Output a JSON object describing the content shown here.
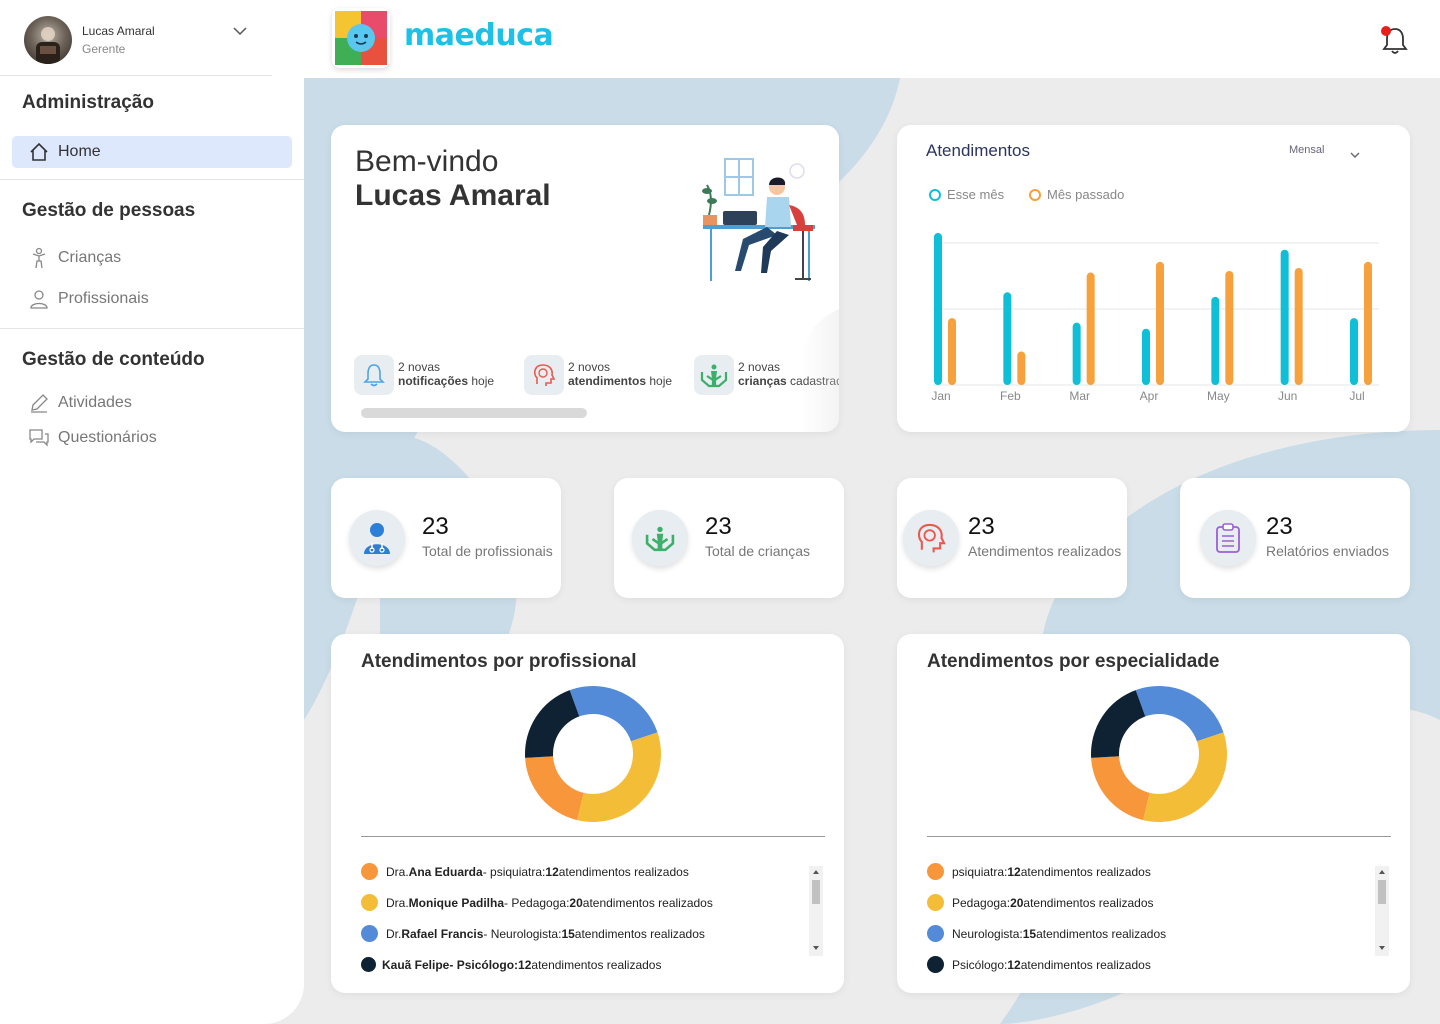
{
  "user": {
    "name": "Lucas Amaral",
    "role": "Gerente"
  },
  "app": {
    "name": "maeduca"
  },
  "sidebar": {
    "sections": [
      {
        "title": "Administração",
        "items": [
          {
            "label": "Home",
            "icon": "home-icon",
            "active": true
          }
        ]
      },
      {
        "title": "Gestão de pessoas",
        "items": [
          {
            "label": "Crianças",
            "icon": "child-icon"
          },
          {
            "label": "Profissionais",
            "icon": "professional-icon"
          }
        ]
      },
      {
        "title": "Gestão de conteúdo",
        "items": [
          {
            "label": "Atividades",
            "icon": "pencil-icon"
          },
          {
            "label": "Questionários",
            "icon": "chat-icon"
          }
        ]
      }
    ]
  },
  "welcome": {
    "greeting": "Bem-vindo",
    "name": "Lucas Amaral",
    "infos": [
      {
        "line1": "2 novas",
        "bold": "notificações",
        "rest": " hoje",
        "icon": "bell-icon"
      },
      {
        "line1": "2 novos",
        "bold": "atendimentos",
        "rest": " hoje",
        "icon": "head-icon"
      },
      {
        "line1": "2 novas",
        "bold": "crianças",
        "rest": " cadastradas",
        "icon": "hands-icon"
      }
    ]
  },
  "attendance_chart": {
    "title": "Atendimentos",
    "period": "Mensal",
    "legend": {
      "current": "Esse mês",
      "previous": "Mês passado"
    }
  },
  "chart_data": [
    {
      "type": "bar",
      "title": "Atendimentos",
      "categories": [
        "Jan",
        "Feb",
        "Mar",
        "Apr",
        "May",
        "Jun",
        "Jul"
      ],
      "series": [
        {
          "name": "Esse mês",
          "color": "#0fbfd8",
          "values": [
            100,
            61,
            41,
            37,
            58,
            89,
            44
          ]
        },
        {
          "name": "Mês passado",
          "color": "#f7a13d",
          "values": [
            44,
            22,
            74,
            81,
            75,
            77,
            81
          ]
        }
      ],
      "ylim": [
        0,
        100
      ],
      "grid": true
    },
    {
      "type": "pie",
      "title": "Atendimentos por profissional",
      "labels": [
        "Dra. Ana Eduarda",
        "Dra. Monique Padilha",
        "Dr. Rafael Francis",
        "Kauã Felipe"
      ],
      "values": [
        12,
        20,
        15,
        12
      ]
    },
    {
      "type": "pie",
      "title": "Atendimentos por especialidade",
      "labels": [
        "psiquiatra",
        "Pedagoga",
        "Neurologista",
        "Psicólogo"
      ],
      "values": [
        12,
        20,
        15,
        12
      ]
    }
  ],
  "stats": [
    {
      "value": "23",
      "label": "Total de profissionais",
      "icon": "doctor-icon"
    },
    {
      "value": "23",
      "label": "Total de crianças",
      "icon": "hands-icon"
    },
    {
      "value": "23",
      "label": "Atendimentos realizados",
      "icon": "head-icon"
    },
    {
      "value": "23",
      "label": "Relatórios enviados",
      "icon": "clipboard-icon"
    }
  ],
  "by_professional": {
    "title": "Atendimentos por profissional",
    "items": [
      {
        "prefix": "Dra. ",
        "name": "Ana Eduarda",
        "role": " - psiquiatra: ",
        "count": "12",
        "suffix": " atendimentos realizados",
        "color": "#f7963a"
      },
      {
        "prefix": "Dra. ",
        "name": "Monique Padilha",
        "role": " - Pedagoga: ",
        "count": "20",
        "suffix": " atendimentos realizados",
        "color": "#f4bd38"
      },
      {
        "prefix": "Dr. ",
        "name": "Rafael Francis",
        "role": " - Neurologista: ",
        "count": "15",
        "suffix": " atendimentos realizados",
        "color": "#548bd8"
      },
      {
        "prefix": "",
        "name": "Kauã Felipe",
        "role": " - Psicólogo: ",
        "count": "12",
        "suffix": " atendimentos realizados",
        "color": "#0f2233"
      }
    ]
  },
  "by_specialty": {
    "title": "Atendimentos por especialidade",
    "items": [
      {
        "role": " psiquiatra: ",
        "count": "12",
        "suffix": " atendimentos realizados",
        "color": "#f7963a"
      },
      {
        "role": "Pedagoga: ",
        "count": "20",
        "suffix": " atendimentos realizados",
        "color": "#f4bd38"
      },
      {
        "role": "Neurologista: ",
        "count": "15",
        "suffix": " atendimentos realizados",
        "color": "#548bd8"
      },
      {
        "role": "Psicólogo: ",
        "count": "12",
        "suffix": " atendimentos realizados",
        "color": "#0f2233"
      }
    ]
  }
}
